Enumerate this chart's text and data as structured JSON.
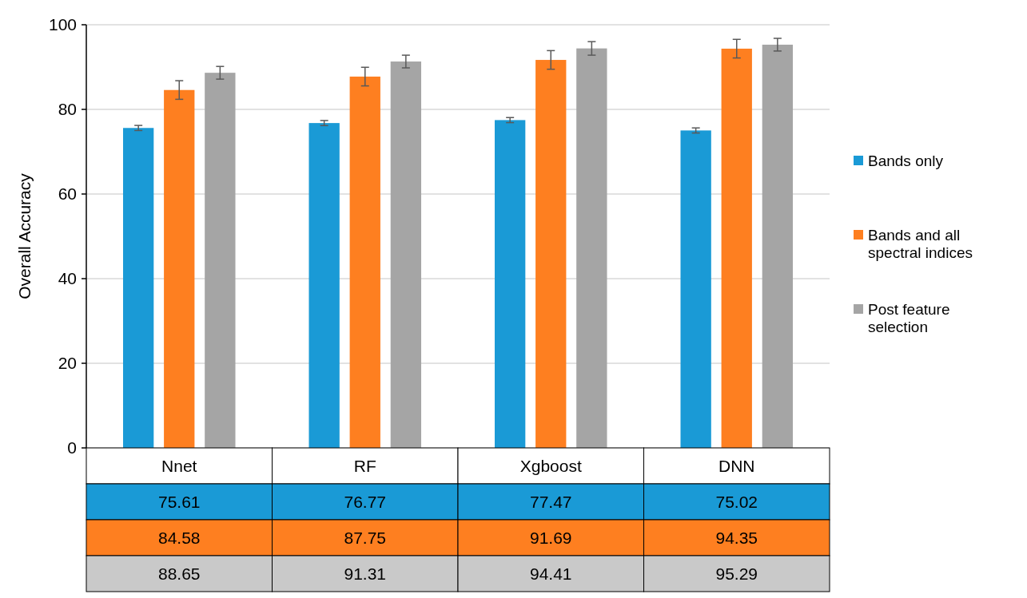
{
  "chart_data": {
    "type": "bar",
    "ylabel": "Overall Accuracy",
    "categories": [
      "Nnet",
      "RF",
      "Xgboost",
      "DNN"
    ],
    "series": [
      {
        "name": "Bands only",
        "color": "#1a9ad6",
        "values": [
          75.61,
          76.77,
          77.47,
          75.02
        ],
        "errors": [
          0.6,
          0.6,
          0.6,
          0.6
        ]
      },
      {
        "name": "Bands and all spectral indices",
        "color": "#fe7f20",
        "values": [
          84.58,
          87.75,
          91.69,
          94.35
        ],
        "errors": [
          2.2,
          2.2,
          2.2,
          2.2
        ]
      },
      {
        "name": "Post feature selection",
        "color": "#a5a5a5",
        "values": [
          88.65,
          91.31,
          94.41,
          95.29
        ],
        "errors": [
          1.5,
          1.5,
          1.6,
          1.5
        ]
      }
    ],
    "ylim": [
      0,
      100
    ],
    "yticks": [
      0,
      20,
      40,
      60,
      80,
      100
    ],
    "grid": "y",
    "legend": "right",
    "data_labels": true
  }
}
